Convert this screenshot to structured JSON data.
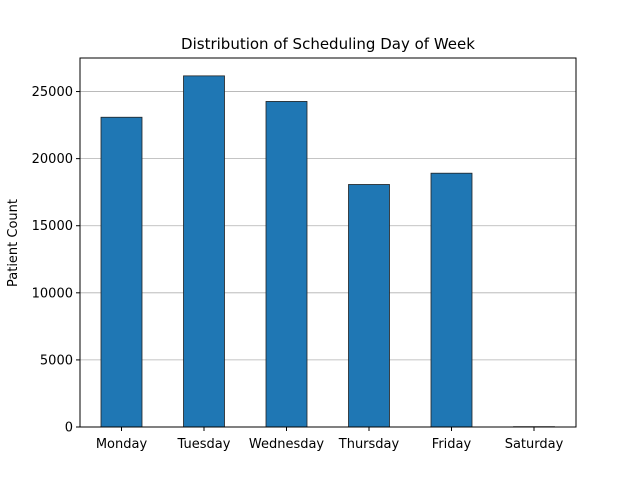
{
  "chart_data": {
    "type": "bar",
    "title": "Distribution of Scheduling Day of Week",
    "xlabel": "",
    "ylabel": "Patient Count",
    "categories": [
      "Monday",
      "Tuesday",
      "Wednesday",
      "Thursday",
      "Friday",
      "Saturday"
    ],
    "values": [
      23085,
      26168,
      24262,
      18073,
      18915,
      24
    ],
    "ylim": [
      0,
      27500
    ],
    "yticks": [
      0,
      5000,
      10000,
      15000,
      20000,
      25000
    ],
    "grid": "horizontal",
    "colors": {
      "bar": "#1f77b4",
      "edge": "#222222",
      "grid": "#b0b0b0"
    }
  }
}
